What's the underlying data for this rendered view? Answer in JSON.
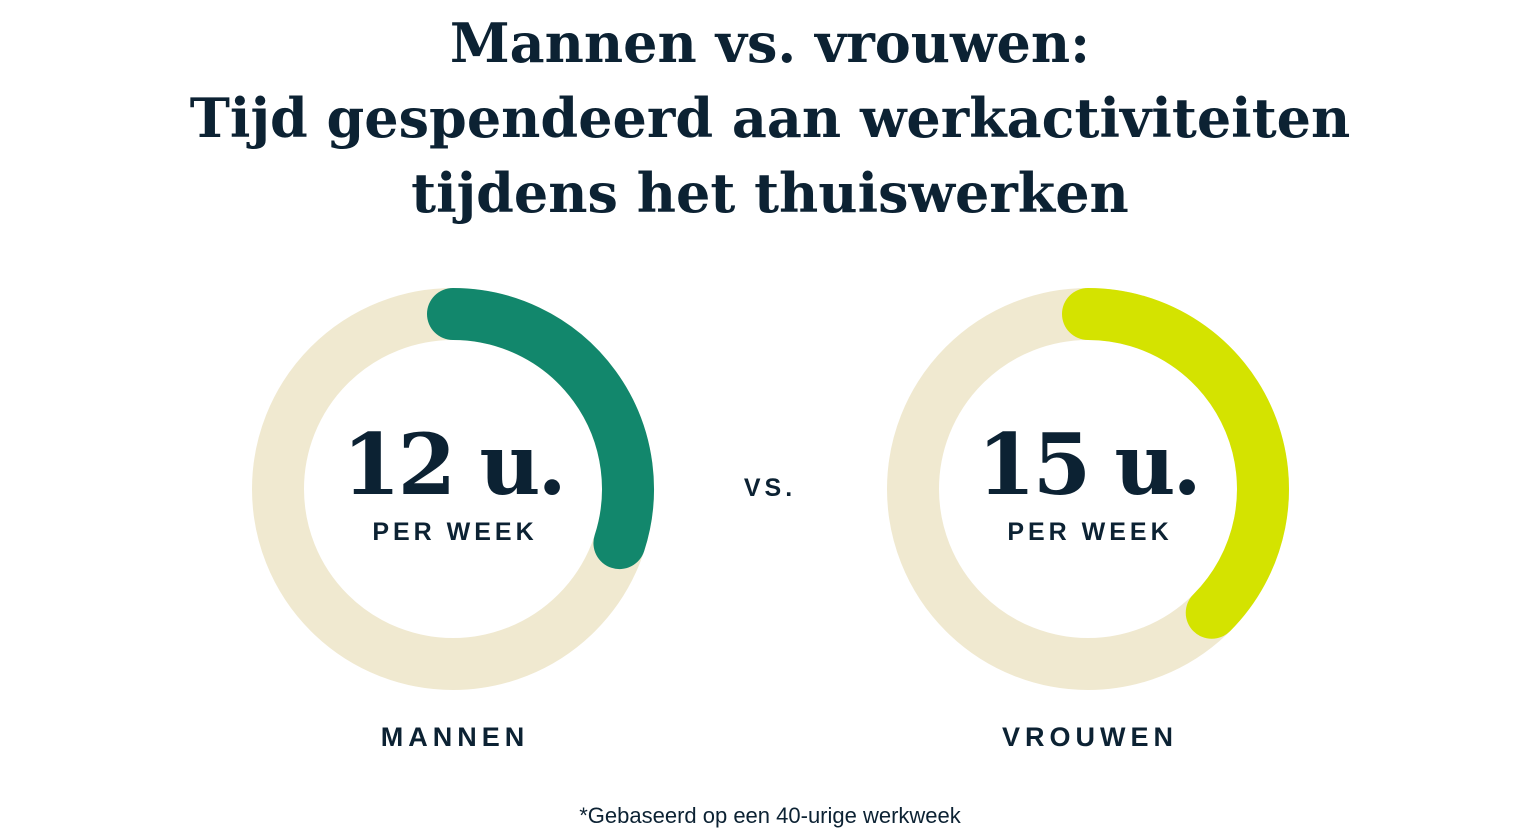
{
  "title": [
    "Mannen vs. vrouwen:",
    "Tijd gespendeerd aan werkactiviteiten",
    "tijdens het thuiswerken"
  ],
  "vs_label": "vs.",
  "footnote": "*Gebaseerd op een 40-urige werkweek",
  "chart_data": {
    "type": "donut",
    "total": 40,
    "unit": "u.",
    "unit_label": "PER WEEK",
    "track_color": "#F0E9D0",
    "series": [
      {
        "name": "MANNEN",
        "value": 12,
        "display": "12 u.",
        "color": "#12876C"
      },
      {
        "name": "VROUWEN",
        "value": 15,
        "display": "15 u.",
        "color": "#D4E300"
      }
    ]
  }
}
